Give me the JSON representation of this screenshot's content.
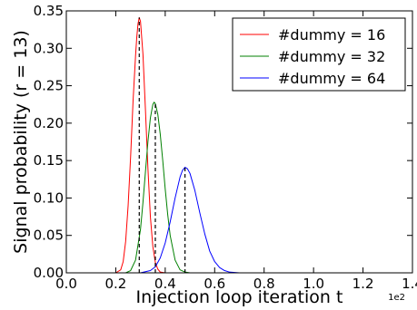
{
  "chart_data": {
    "type": "line",
    "xlabel": "Injection loop iteration t",
    "ylabel": "Signal probability (r = 13)",
    "x_offset_label": "1e2",
    "xlim": [
      0,
      140
    ],
    "ylim": [
      0,
      0.35
    ],
    "x_ticks": [
      0,
      20,
      40,
      60,
      80,
      100,
      120,
      140
    ],
    "x_tick_labels": [
      "0.0",
      "0.2",
      "0.4",
      "0.6",
      "0.8",
      "1.0",
      "1.2",
      "1.4"
    ],
    "y_ticks": [
      0,
      0.05,
      0.1,
      0.15,
      0.2,
      0.25,
      0.3,
      0.35
    ],
    "y_tick_labels": [
      "0.00",
      "0.05",
      "0.10",
      "0.15",
      "0.20",
      "0.25",
      "0.30",
      "0.35"
    ],
    "legend_position": "top-right",
    "series": [
      {
        "name": "#dummy = 16",
        "color": "#ff0000",
        "peak_x": 29.5,
        "x": [
          20,
          22,
          23,
          24,
          25,
          26,
          27,
          28,
          28.5,
          29,
          29.5,
          30,
          31,
          32,
          33,
          34,
          35,
          36,
          37,
          38,
          40
        ],
        "y": [
          0,
          0.004,
          0.015,
          0.042,
          0.09,
          0.155,
          0.23,
          0.29,
          0.315,
          0.333,
          0.341,
          0.336,
          0.292,
          0.218,
          0.14,
          0.075,
          0.035,
          0.014,
          0.005,
          0.001,
          0
        ]
      },
      {
        "name": "#dummy = 32",
        "color": "#008000",
        "peak_x": 36,
        "x": [
          24,
          26,
          28,
          30,
          31,
          32,
          33,
          34,
          35,
          35.5,
          36,
          37,
          38,
          39,
          40,
          41,
          42,
          44,
          46,
          48,
          50
        ],
        "y": [
          0,
          0.003,
          0.017,
          0.058,
          0.094,
          0.135,
          0.175,
          0.207,
          0.225,
          0.228,
          0.226,
          0.212,
          0.185,
          0.15,
          0.112,
          0.078,
          0.05,
          0.017,
          0.004,
          0.001,
          0
        ]
      },
      {
        "name": "#dummy = 64",
        "color": "#0000ff",
        "peak_x": 48,
        "x": [
          30,
          34,
          36,
          38,
          40,
          42,
          44,
          46,
          47,
          48,
          49,
          50,
          52,
          54,
          56,
          58,
          60,
          62,
          64,
          66,
          70
        ],
        "y": [
          0,
          0.003,
          0.008,
          0.02,
          0.04,
          0.068,
          0.1,
          0.128,
          0.137,
          0.141,
          0.139,
          0.133,
          0.11,
          0.08,
          0.052,
          0.029,
          0.015,
          0.007,
          0.003,
          0.001,
          0
        ]
      }
    ]
  }
}
